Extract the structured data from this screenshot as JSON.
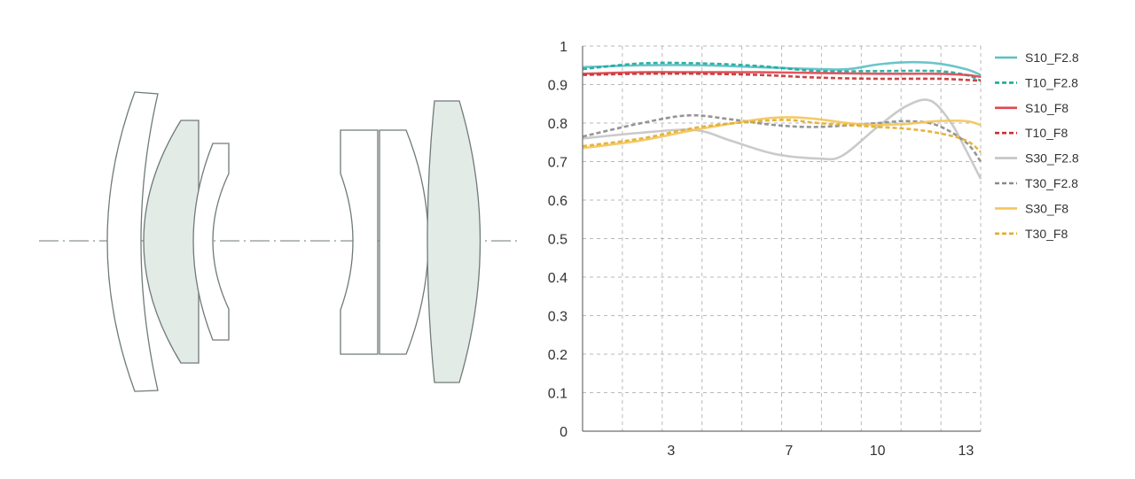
{
  "colors": {
    "teal": "#5bbfc4",
    "teal_dark": "#1aa89a",
    "red": "#e0454f",
    "red_dark": "#c43030",
    "gray": "#c4c4c4",
    "gray_dark": "#8a8a8a",
    "yellow": "#f3c55a",
    "yellow_dark": "#e3ad2a",
    "grid": "#b9b9b9",
    "lens_stroke": "#707a7a",
    "lens_tint": "#e3ebe7"
  },
  "lens_diagram": {
    "elements": [
      {
        "name": "element-1",
        "tinted": false
      },
      {
        "name": "element-2",
        "tinted": true
      },
      {
        "name": "element-3",
        "tinted": false
      },
      {
        "name": "element-4",
        "tinted": false
      },
      {
        "name": "element-5",
        "tinted": false
      },
      {
        "name": "element-6",
        "tinted": true
      }
    ]
  },
  "chart_data": {
    "type": "line",
    "title": "",
    "xlabel": "",
    "ylabel": "",
    "xlim": [
      0,
      13.5
    ],
    "ylim": [
      0,
      1
    ],
    "xticks": [
      3,
      7,
      10,
      13
    ],
    "yticks": [
      0,
      0.1,
      0.2,
      0.3,
      0.4,
      0.5,
      0.6,
      0.7,
      0.8,
      0.9,
      1
    ],
    "ytick_labels": [
      "0",
      "0.1",
      "0.2",
      "0.3",
      "0.4",
      "0.5",
      "0.6",
      "0.7",
      "0.8",
      "0.9",
      "1"
    ],
    "grid": true,
    "legend_position": "right",
    "series": [
      {
        "name": "S10_F2.8",
        "color": "#5bbfc4",
        "dashed": false,
        "x": [
          0,
          2,
          4,
          6,
          8,
          9,
          10,
          11,
          12,
          13,
          13.5
        ],
        "y": [
          0.945,
          0.95,
          0.95,
          0.945,
          0.94,
          0.94,
          0.952,
          0.958,
          0.955,
          0.94,
          0.925
        ]
      },
      {
        "name": "T10_F2.8",
        "color": "#1aa89a",
        "dashed": true,
        "x": [
          0,
          2,
          4,
          6,
          8,
          10,
          12,
          13,
          13.5
        ],
        "y": [
          0.94,
          0.955,
          0.955,
          0.948,
          0.935,
          0.935,
          0.935,
          0.925,
          0.91
        ]
      },
      {
        "name": "S10_F8",
        "color": "#e0454f",
        "dashed": false,
        "x": [
          0,
          2,
          4,
          6,
          8,
          10,
          12,
          13,
          13.5
        ],
        "y": [
          0.928,
          0.932,
          0.932,
          0.932,
          0.93,
          0.928,
          0.928,
          0.925,
          0.92
        ]
      },
      {
        "name": "T10_F8",
        "color": "#c43030",
        "dashed": true,
        "x": [
          0,
          2,
          4,
          6,
          8,
          10,
          12,
          13,
          13.5
        ],
        "y": [
          0.925,
          0.928,
          0.928,
          0.925,
          0.918,
          0.915,
          0.915,
          0.912,
          0.91
        ]
      },
      {
        "name": "S30_F2.8",
        "color": "#c4c4c4",
        "dashed": false,
        "x": [
          0,
          2,
          3.8,
          5,
          6.5,
          8,
          8.8,
          10,
          11,
          11.8,
          12.5,
          13,
          13.5
        ],
        "y": [
          0.76,
          0.775,
          0.782,
          0.755,
          0.72,
          0.708,
          0.715,
          0.79,
          0.845,
          0.858,
          0.8,
          0.73,
          0.655
        ]
      },
      {
        "name": "T30_F2.8",
        "color": "#8a8a8a",
        "dashed": true,
        "x": [
          0,
          2,
          3.6,
          5,
          6.5,
          8,
          10,
          11,
          12,
          13,
          13.5
        ],
        "y": [
          0.765,
          0.8,
          0.82,
          0.81,
          0.795,
          0.79,
          0.8,
          0.805,
          0.795,
          0.75,
          0.7
        ]
      },
      {
        "name": "S30_F8",
        "color": "#f3c55a",
        "dashed": false,
        "x": [
          0,
          2,
          4,
          6,
          7,
          8,
          9,
          10,
          11,
          12,
          13,
          13.5
        ],
        "y": [
          0.735,
          0.755,
          0.785,
          0.81,
          0.815,
          0.81,
          0.8,
          0.795,
          0.798,
          0.805,
          0.805,
          0.795
        ]
      },
      {
        "name": "T30_F8",
        "color": "#e3ad2a",
        "dashed": true,
        "x": [
          0,
          2,
          4,
          6,
          7,
          8,
          10,
          11,
          12,
          13,
          13.5
        ],
        "y": [
          0.74,
          0.76,
          0.79,
          0.805,
          0.808,
          0.8,
          0.79,
          0.785,
          0.775,
          0.755,
          0.725
        ]
      }
    ]
  }
}
